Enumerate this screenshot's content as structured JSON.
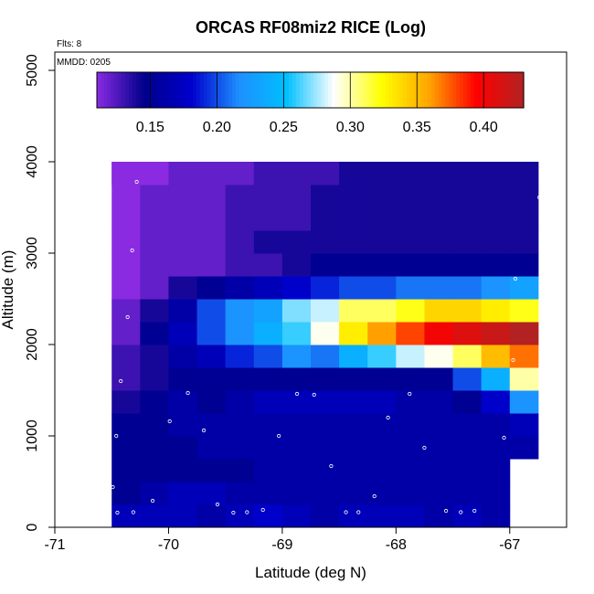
{
  "chart_data": {
    "type": "heatmap",
    "title": "ORCAS RF08miz2 RICE (Log)",
    "xlabel": "Latitude (deg N)",
    "ylabel": "Altitude (m)",
    "info_lines": [
      "Flts: 8",
      "MMDD: 0205"
    ],
    "xlim": [
      -71,
      -66.5
    ],
    "ylim": [
      0,
      5200
    ],
    "x_ticks": [
      -71,
      -70,
      -69,
      -68,
      -67
    ],
    "y_ticks": [
      0,
      1000,
      2000,
      3000,
      4000,
      5000
    ],
    "grid": false,
    "legend": "colorbar top",
    "colorbar": {
      "min": 0.11,
      "max": 0.43,
      "ticks": [
        0.15,
        0.2,
        0.25,
        0.3,
        0.35,
        0.4
      ],
      "tick_labels": [
        "0.15",
        "0.20",
        "0.25",
        "0.30",
        "0.35",
        "0.40"
      ],
      "colors": [
        "#8a2be2",
        "#00008b",
        "#0000cd",
        "#1e90ff",
        "#00bfff",
        "#ffffff",
        "#ffff00",
        "#ffa500",
        "#ff0000",
        "#b22222"
      ]
    },
    "x_edges": [
      -70.5,
      -70.25,
      -70.0,
      -69.75,
      -69.5,
      -69.25,
      -69.0,
      -68.75,
      -68.5,
      -68.25,
      -68.0,
      -67.75,
      -67.5,
      -67.25,
      -67.0,
      -66.75
    ],
    "y_edges": [
      0,
      250,
      500,
      750,
      1000,
      1250,
      1500,
      1750,
      2000,
      2250,
      2500,
      2750,
      3000,
      3250,
      3500,
      3750,
      4000
    ],
    "cells": [
      [
        0.17,
        0.17,
        0.17,
        0.16,
        0.17,
        0.18,
        0.17,
        0.16,
        0.17,
        0.17,
        0.17,
        0.16,
        0.17,
        0.16,
        null
      ],
      [
        0.15,
        0.16,
        0.17,
        0.17,
        0.16,
        0.16,
        0.16,
        0.16,
        0.16,
        0.16,
        0.16,
        0.16,
        0.16,
        0.16,
        null
      ],
      [
        0.15,
        0.15,
        0.15,
        0.15,
        0.15,
        0.16,
        0.16,
        0.16,
        0.16,
        0.16,
        0.16,
        0.16,
        0.16,
        0.16,
        null
      ],
      [
        0.15,
        0.15,
        0.15,
        0.16,
        0.16,
        0.16,
        0.16,
        0.16,
        0.16,
        0.16,
        0.16,
        0.16,
        0.16,
        0.16,
        0.16
      ],
      [
        0.15,
        0.15,
        0.16,
        0.16,
        0.16,
        0.16,
        0.16,
        0.16,
        0.16,
        0.16,
        0.16,
        0.16,
        0.16,
        0.16,
        0.17
      ],
      [
        0.14,
        0.15,
        0.16,
        0.15,
        0.16,
        0.17,
        0.17,
        0.17,
        0.17,
        0.17,
        0.16,
        0.16,
        0.15,
        0.18,
        0.22
      ],
      [
        0.13,
        0.14,
        0.15,
        0.15,
        0.15,
        0.15,
        0.15,
        0.15,
        0.15,
        0.15,
        0.15,
        0.15,
        0.2,
        0.24,
        0.3
      ],
      [
        0.13,
        0.14,
        0.16,
        0.17,
        0.19,
        0.2,
        0.22,
        0.21,
        0.24,
        0.26,
        0.28,
        0.29,
        0.31,
        0.35,
        0.37
      ],
      [
        0.12,
        0.15,
        0.17,
        0.2,
        0.22,
        0.24,
        0.26,
        0.29,
        0.33,
        0.36,
        0.38,
        0.4,
        0.41,
        0.42,
        0.43
      ],
      [
        0.12,
        0.14,
        0.16,
        0.2,
        0.22,
        0.23,
        0.27,
        0.28,
        0.31,
        0.31,
        0.32,
        0.34,
        0.34,
        0.33,
        0.32
      ],
      [
        0.11,
        0.12,
        0.14,
        0.15,
        0.16,
        0.17,
        0.18,
        0.19,
        0.2,
        0.2,
        0.21,
        0.21,
        0.21,
        0.22,
        0.23
      ],
      [
        0.11,
        0.12,
        0.12,
        0.12,
        0.13,
        0.13,
        0.14,
        0.15,
        0.15,
        0.15,
        0.15,
        0.15,
        0.15,
        0.15,
        0.15
      ],
      [
        0.11,
        0.12,
        0.12,
        0.12,
        0.13,
        0.14,
        0.14,
        0.14,
        0.14,
        0.14,
        0.14,
        0.14,
        0.14,
        0.14,
        0.14
      ],
      [
        0.11,
        0.12,
        0.12,
        0.12,
        0.13,
        0.13,
        0.13,
        0.14,
        0.14,
        0.14,
        0.14,
        0.14,
        0.14,
        0.14,
        0.14
      ],
      [
        0.11,
        0.12,
        0.12,
        0.12,
        0.13,
        0.13,
        0.13,
        0.14,
        0.14,
        0.14,
        0.14,
        0.14,
        0.14,
        0.14,
        0.14
      ],
      [
        0.11,
        0.11,
        0.12,
        0.12,
        0.12,
        0.13,
        0.13,
        0.13,
        0.14,
        0.14,
        0.14,
        0.14,
        0.14,
        0.14,
        0.14
      ]
    ],
    "top_cell": {
      "x_range": [
        -70.5,
        -70.25
      ],
      "y_range": [
        3750,
        4000
      ],
      "value": 0.11
    },
    "flight_points": [
      [
        -70.28,
        3780
      ],
      [
        -70.32,
        3030
      ],
      [
        -70.36,
        2300
      ],
      [
        -70.42,
        1600
      ],
      [
        -70.46,
        1000
      ],
      [
        -70.49,
        440
      ],
      [
        -70.45,
        160
      ],
      [
        -70.31,
        165
      ],
      [
        -70.14,
        290
      ],
      [
        -69.99,
        1160
      ],
      [
        -69.83,
        1470
      ],
      [
        -69.69,
        1060
      ],
      [
        -69.57,
        250
      ],
      [
        -69.43,
        160
      ],
      [
        -69.31,
        165
      ],
      [
        -69.17,
        190
      ],
      [
        -69.03,
        1000
      ],
      [
        -68.87,
        1460
      ],
      [
        -68.72,
        1450
      ],
      [
        -68.57,
        670
      ],
      [
        -68.44,
        165
      ],
      [
        -68.33,
        165
      ],
      [
        -68.19,
        340
      ],
      [
        -68.07,
        1200
      ],
      [
        -67.88,
        1460
      ],
      [
        -67.75,
        870
      ],
      [
        -67.56,
        180
      ],
      [
        -67.43,
        165
      ],
      [
        -67.31,
        180
      ],
      [
        -67.05,
        980
      ],
      [
        -66.97,
        1830
      ],
      [
        -66.95,
        2720
      ],
      [
        -66.74,
        3610
      ]
    ]
  }
}
